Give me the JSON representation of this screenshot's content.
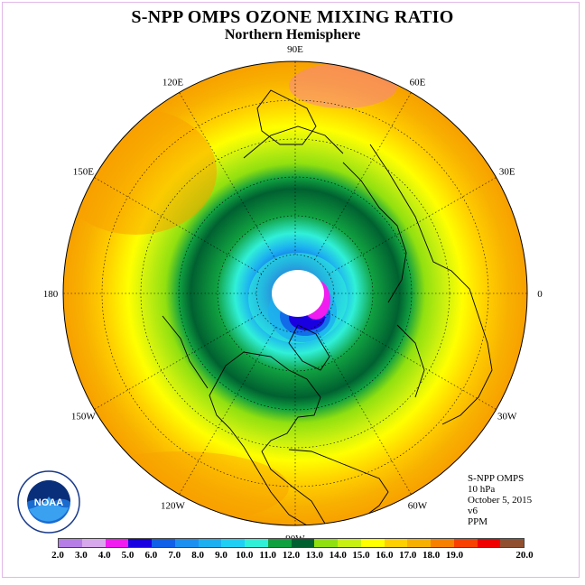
{
  "title": "S-NPP OMPS OZONE MIXING RATIO",
  "subtitle": "Northern Hemisphere",
  "info": {
    "instrument": "S-NPP OMPS",
    "level": "10 hPa",
    "date": "October 5, 2015",
    "version": "v6",
    "units": "PPM"
  },
  "longitude_labels": [
    {
      "label": "90E",
      "deg": 90
    },
    {
      "label": "60E",
      "deg": 60
    },
    {
      "label": "30E",
      "deg": 30
    },
    {
      "label": "0",
      "deg": 0
    },
    {
      "label": "30W",
      "deg": -30
    },
    {
      "label": "60W",
      "deg": -60
    },
    {
      "label": "90W",
      "deg": -90
    },
    {
      "label": "120W",
      "deg": -120
    },
    {
      "label": "150W",
      "deg": -150
    },
    {
      "label": "180",
      "deg": 180
    },
    {
      "label": "150E",
      "deg": 150
    },
    {
      "label": "120E",
      "deg": 120
    }
  ],
  "colorbar": {
    "labels": [
      "2.0",
      "3.0",
      "4.0",
      "5.0",
      "6.0",
      "7.0",
      "8.0",
      "9.0",
      "10.0",
      "11.0",
      "12.0",
      "13.0",
      "14.0",
      "15.0",
      "16.0",
      "17.0",
      "18.0",
      "19.0",
      "20.0"
    ],
    "colors": [
      "#b77de6",
      "#d8a8ec",
      "#f01cf0",
      "#1a00e0",
      "#1060e8",
      "#1c90f0",
      "#1cb0f0",
      "#20d0f4",
      "#30f0d8",
      "#10a040",
      "#006030",
      "#90e010",
      "#c8f010",
      "#ffff00",
      "#ffd000",
      "#f8b000",
      "#f88000",
      "#f84000",
      "#f00000",
      "#905030"
    ]
  },
  "logo": {
    "name": "noaa-logo",
    "text": "NOAA"
  }
}
